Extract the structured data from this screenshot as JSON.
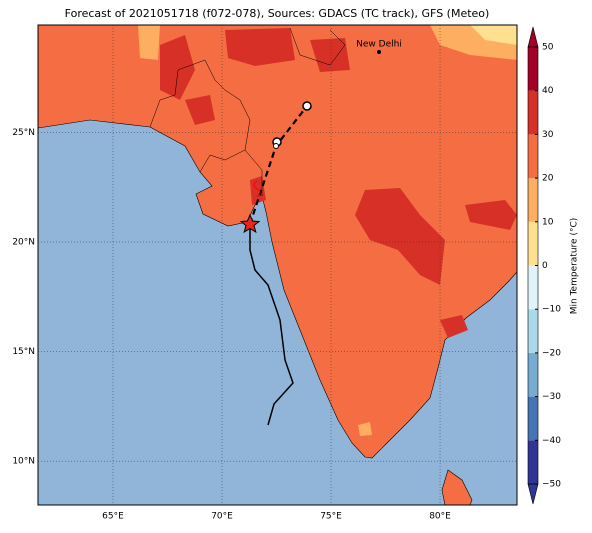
{
  "chart_data": {
    "type": "map",
    "title": "Forecast of 2021051718 (f072-078), Sources: GDACS (TC track), GFS (Meteo)",
    "xlim": [
      61.56,
      83.53
    ],
    "ylim": [
      8.0,
      29.9
    ],
    "xticks": [
      {
        "value": 65,
        "label": "65°E"
      },
      {
        "value": 70,
        "label": "70°E"
      },
      {
        "value": 75,
        "label": "75°E"
      },
      {
        "value": 80,
        "label": "80°E"
      }
    ],
    "yticks": [
      {
        "value": 10,
        "label": "10°N"
      },
      {
        "value": 15,
        "label": "15°N"
      },
      {
        "value": 20,
        "label": "20°N"
      },
      {
        "value": 25,
        "label": "25°N"
      }
    ],
    "grid": true,
    "places": [
      {
        "label": "New Delhi"
      }
    ],
    "colorbar": {
      "label": "Min Temperature (°C)",
      "lim": [
        -50,
        50
      ],
      "ticks": [
        {
          "value": -50,
          "label": "−50"
        },
        {
          "value": -40,
          "label": "−40"
        },
        {
          "value": -30,
          "label": "−30"
        },
        {
          "value": -20,
          "label": "−20"
        },
        {
          "value": -10,
          "label": "−10"
        },
        0,
        10,
        20,
        30,
        40,
        50
      ],
      "colors": [
        "#313695",
        "#4575b4",
        "#74add1",
        "#abd9e9",
        "#e0f3f8",
        "#fee090",
        "#fdae61",
        "#f46d43",
        "#d73027",
        "#a50026"
      ]
    }
  }
}
